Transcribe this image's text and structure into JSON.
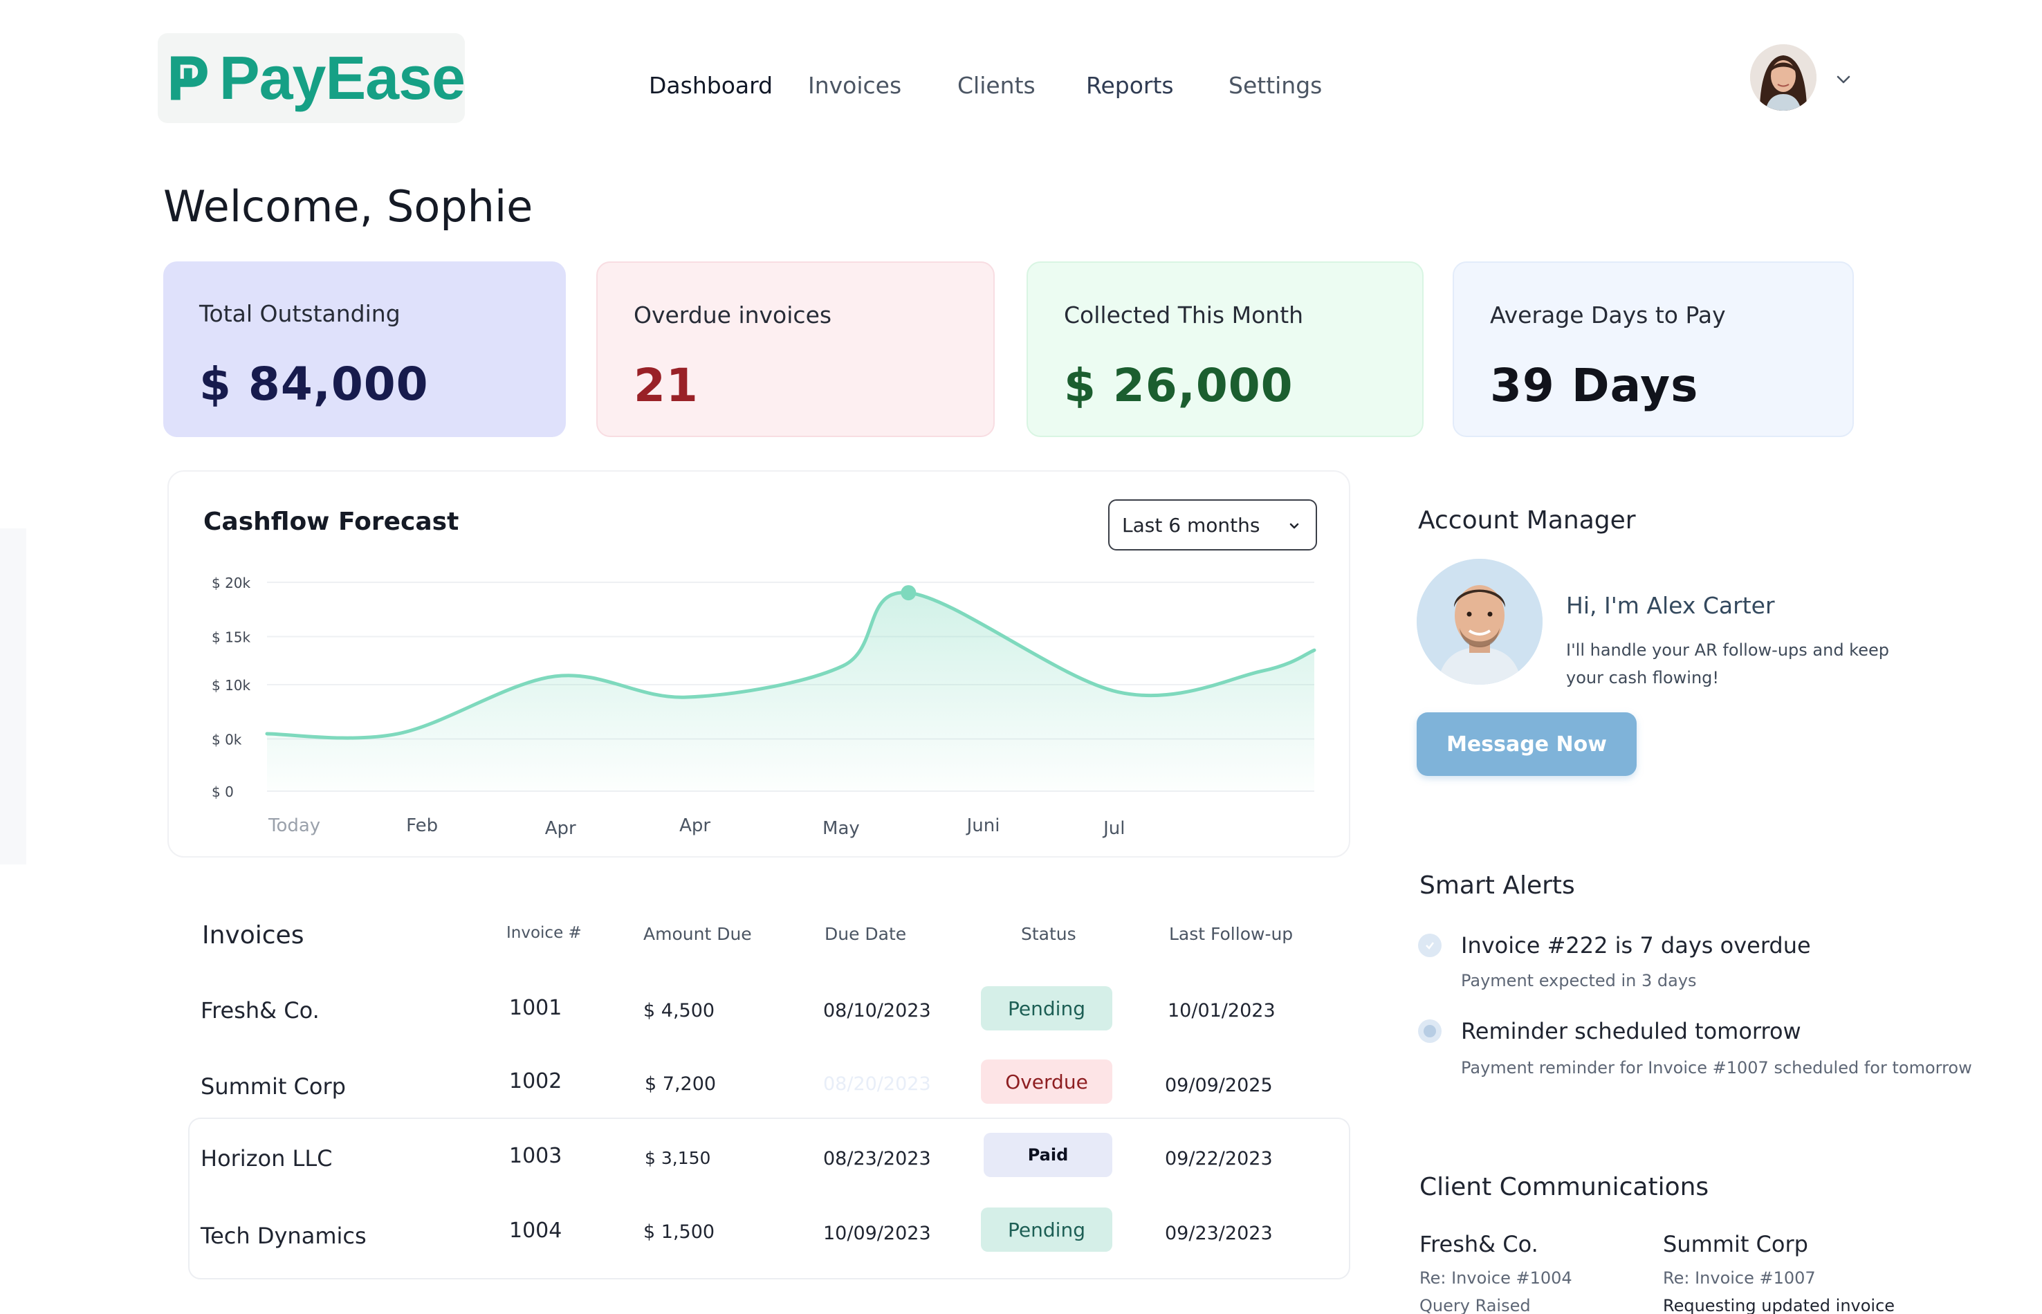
{
  "app": {
    "name": "PayEase",
    "brand_color": "#16a085"
  },
  "nav": {
    "items": [
      {
        "label": "Dashboard",
        "active": true
      },
      {
        "label": "Invoices",
        "active": false
      },
      {
        "label": "Clients",
        "active": false
      },
      {
        "label": "Reports",
        "active": false
      },
      {
        "label": "Settings",
        "active": false
      }
    ]
  },
  "user": {
    "avatar_icon": "user-avatar",
    "menu_icon": "chevron-down-icon"
  },
  "welcome": "Welcome, Sophie",
  "kpis": [
    {
      "label": "Total Outstanding",
      "value": "$ 84,000",
      "color": "#dfe1fb"
    },
    {
      "label": "Overdue invoices",
      "value": "21",
      "color": "#fdeff1"
    },
    {
      "label": "Collected This Month",
      "value": "$ 26,000",
      "color": "#ecfcf2"
    },
    {
      "label": "Average Days to Pay",
      "value": "39 Days",
      "color": "#f1f6fe"
    }
  ],
  "chart": {
    "title": "Cashflow Forecast",
    "range_selected": "Last 6 months",
    "line_color": "#7ed9bd"
  },
  "chart_data": {
    "type": "area",
    "title": "Cashflow Forecast",
    "x_tick_labels": [
      "Today",
      "Feb",
      "Apr",
      "Apr",
      "May",
      "Juni",
      "Jul"
    ],
    "y_tick_labels": [
      "$ 20k",
      "$ 15k",
      "$ 10k",
      "$ 0k",
      "$ 0"
    ],
    "series": [
      {
        "values": [
          {
            "x": 0.0,
            "y": 5.5
          },
          {
            "x": 1.0,
            "y": 5.5
          },
          {
            "x": 2.2,
            "y": 11.0
          },
          {
            "x": 3.2,
            "y": 9.0
          },
          {
            "x": 4.4,
            "y": 12.0
          },
          {
            "x": 4.9,
            "y": 19.0
          },
          {
            "x": 6.5,
            "y": 9.5
          },
          {
            "x": 7.6,
            "y": 11.5
          },
          {
            "x": 8.0,
            "y": 13.5
          }
        ]
      }
    ],
    "highlight_point": {
      "x": 4.9,
      "y": 19.0
    },
    "grid": true
  },
  "account_manager": {
    "title": "Account Manager",
    "greeting": "Hi, I'm Alex Carter",
    "note": "I'll handle your AR follow-ups and keep your cash flowing!",
    "button": "Message Now"
  },
  "smart_alerts": {
    "title": "Smart Alerts",
    "items": [
      {
        "title": "Invoice #222 is 7 days overdue",
        "sub": "Payment expected in 3 days"
      },
      {
        "title": "Reminder scheduled tomorrow",
        "sub": "Payment reminder for Invoice #1007 scheduled for tomorrow"
      }
    ]
  },
  "client_comms": {
    "title": "Client Communications",
    "items": [
      {
        "client": "Fresh& Co.",
        "re": "Re: Invoice #1004",
        "note": "Query Raised"
      },
      {
        "client": "Summit Corp",
        "re": "Re: Invoice #1007",
        "note": "Requesting updated invoice"
      }
    ]
  },
  "invoices": {
    "title": "Invoices",
    "columns": [
      "Invoice #",
      "Amount Due",
      "Due Date",
      "Status",
      "Last Follow-up"
    ],
    "rows": [
      {
        "client": "Fresh& Co.",
        "number": "1001",
        "amount": "$ 4,500",
        "due": "08/10/2023",
        "status": "Pending",
        "followup": "10/01/2023"
      },
      {
        "client": "Summit Corp",
        "number": "1002",
        "amount": "$ 7,200",
        "due": "08/20/2023",
        "status": "Overdue",
        "followup": "09/09/2025"
      },
      {
        "client": "Horizon LLC",
        "number": "1003",
        "amount": "$ 3,150",
        "due": "08/23/2023",
        "status": "Paid",
        "followup": "09/22/2023"
      },
      {
        "client": "Tech Dynamics",
        "number": "1004",
        "amount": "$ 1,500",
        "due": "10/09/2023",
        "status": "Pending",
        "followup": "09/23/2023"
      }
    ]
  }
}
